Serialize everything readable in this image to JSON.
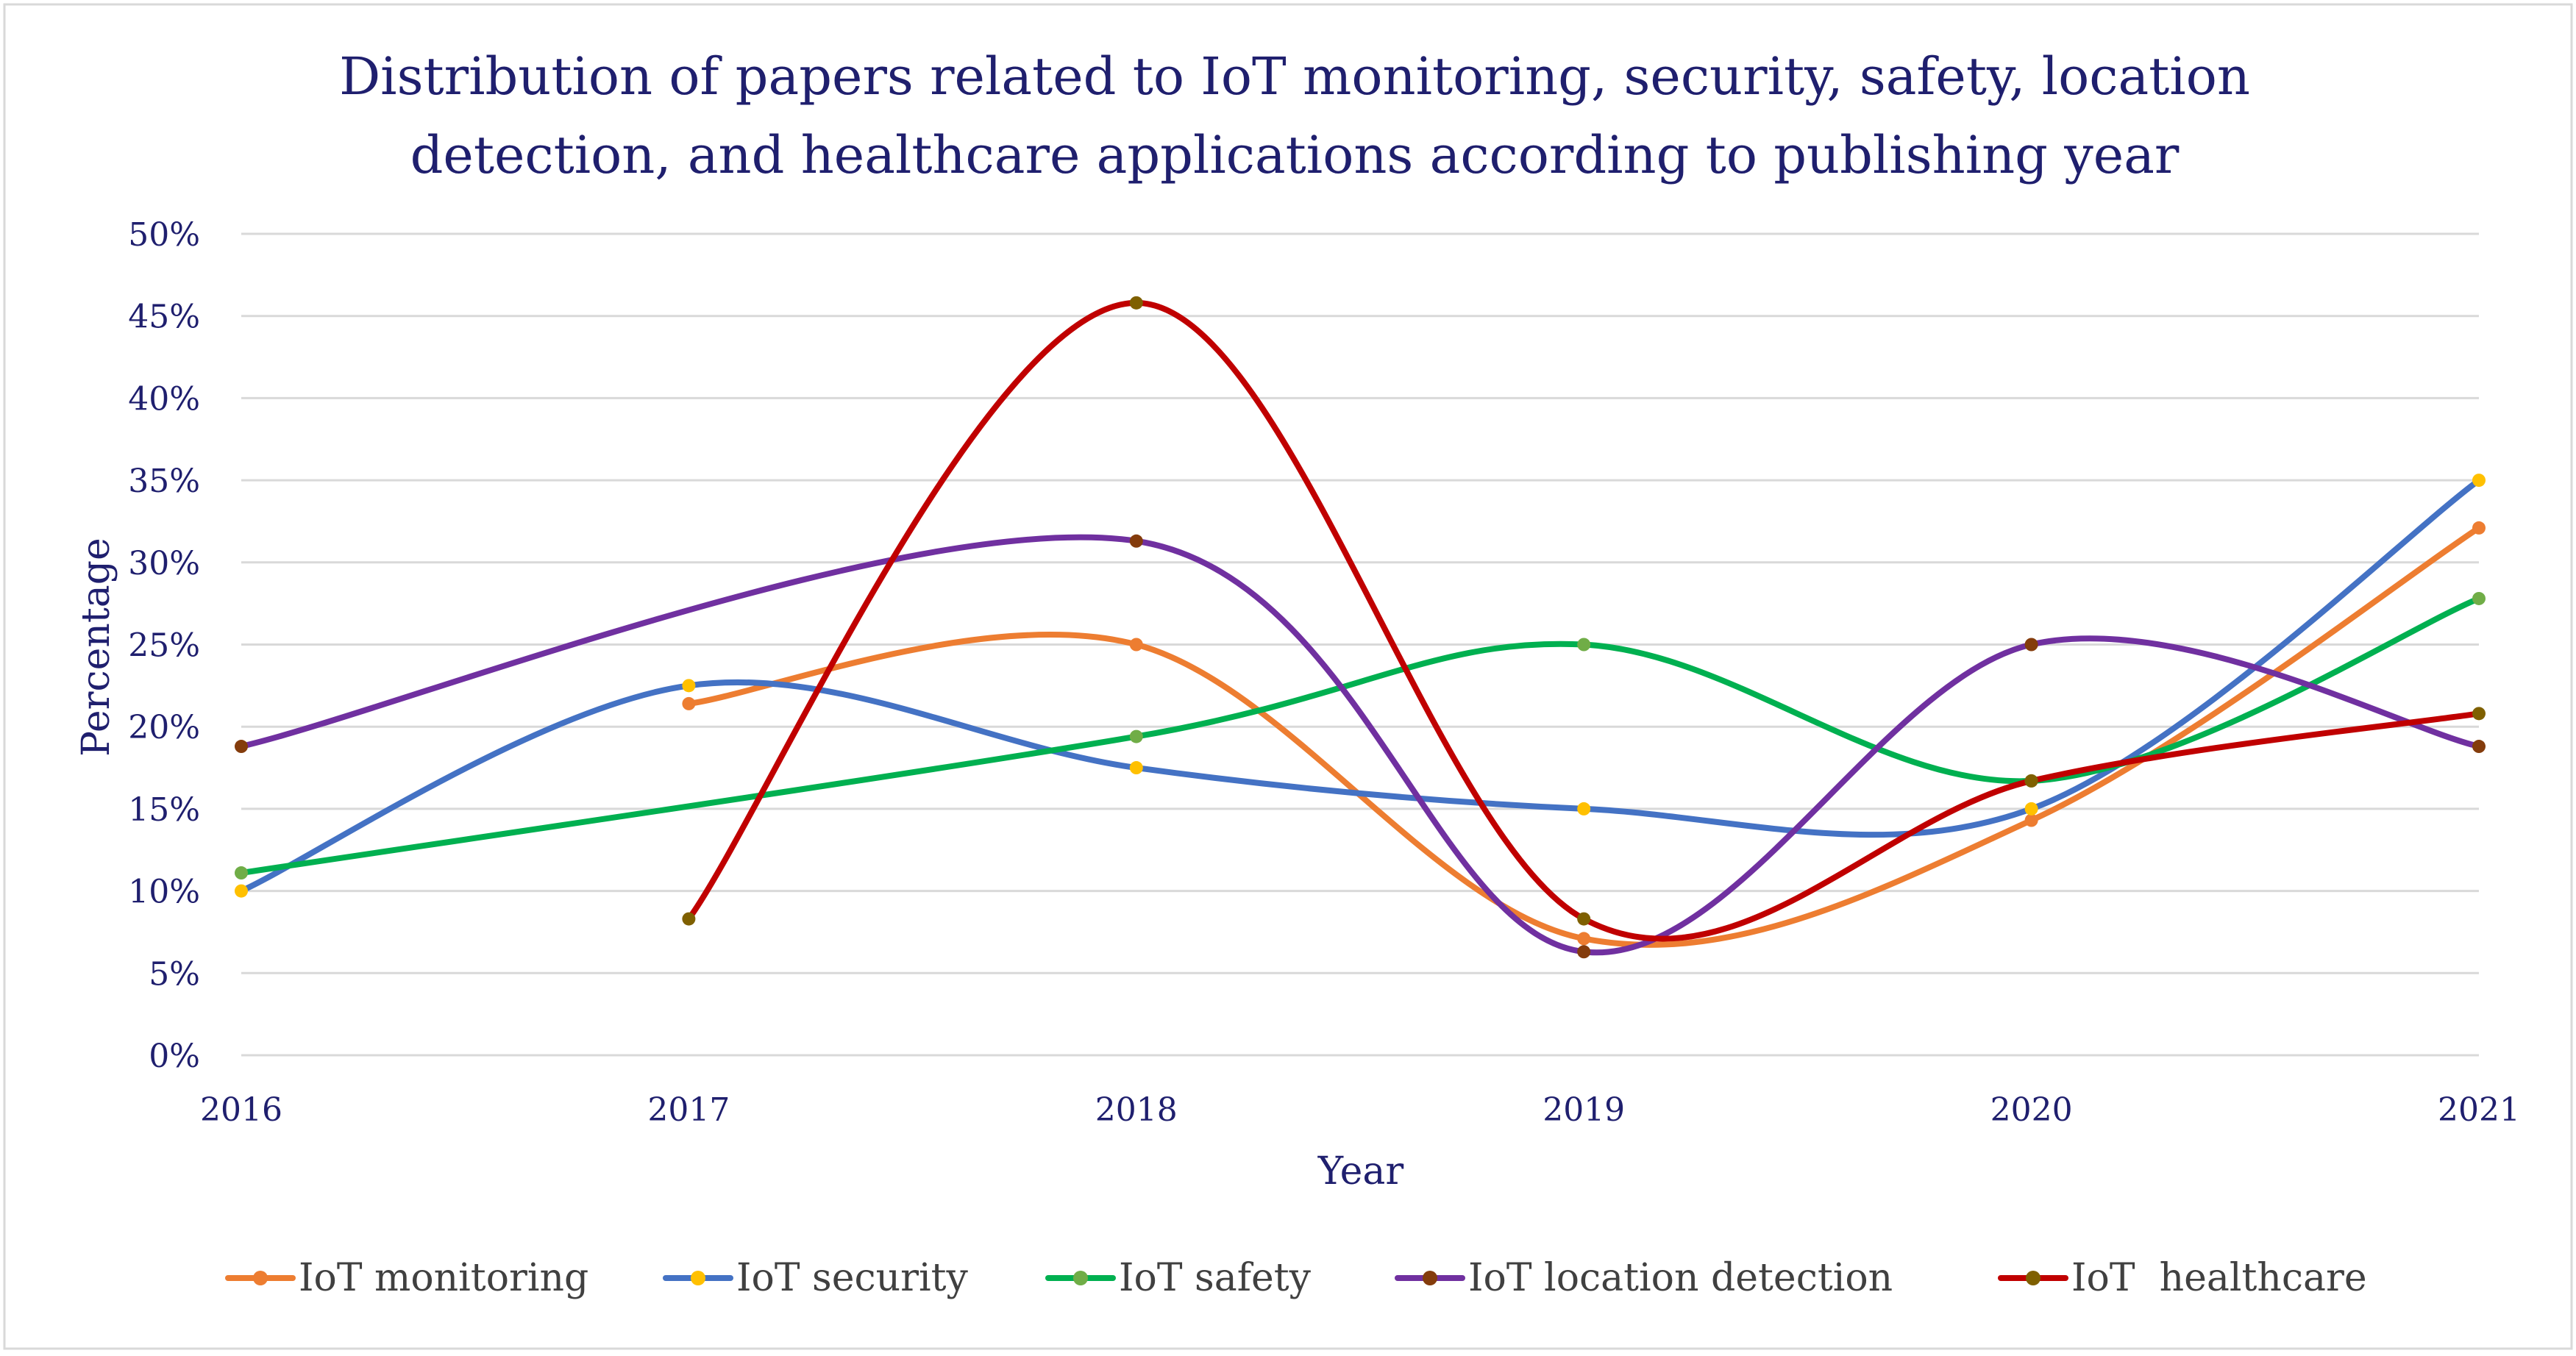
{
  "chart_data": {
    "type": "line",
    "smooth": true,
    "title_lines": [
      "Distribution of papers related to IoT monitoring, security, safety, location",
      "detection, and healthcare applications according to publishing year"
    ],
    "xlabel": "Year",
    "ylabel": "Percentage",
    "categories": [
      "2016",
      "2017",
      "2018",
      "2019",
      "2020",
      "2021"
    ],
    "ylim": [
      0,
      50
    ],
    "yticks": [
      0,
      5,
      10,
      15,
      20,
      25,
      30,
      35,
      40,
      45,
      50
    ],
    "ytick_labels": [
      "0%",
      "5%",
      "10%",
      "15%",
      "20%",
      "25%",
      "30%",
      "35%",
      "40%",
      "45%",
      "50%"
    ],
    "grid": true,
    "legend_position": "bottom",
    "series": [
      {
        "name": "IoT monitoring",
        "color": "#ED7D31",
        "marker_color": "#ED7D31",
        "values": [
          null,
          21.4,
          25.0,
          7.1,
          14.3,
          32.1
        ]
      },
      {
        "name": "IoT security",
        "color": "#4472C4",
        "marker_color": "#FFC000",
        "values": [
          10.0,
          22.5,
          17.5,
          15.0,
          15.0,
          35.0
        ]
      },
      {
        "name": "IoT safety",
        "color": "#00B050",
        "marker_color": "#70AD47",
        "values": [
          11.1,
          null,
          19.4,
          25.0,
          16.7,
          27.8
        ]
      },
      {
        "name": "IoT location detection",
        "color": "#7030A0",
        "marker_color": "#843C0C",
        "values": [
          18.8,
          null,
          31.3,
          6.3,
          25.0,
          18.8
        ]
      },
      {
        "name": "IoT  healthcare",
        "color": "#C00000",
        "marker_color": "#7F6000",
        "values": [
          null,
          8.3,
          45.8,
          8.3,
          16.7,
          20.8
        ]
      }
    ]
  }
}
